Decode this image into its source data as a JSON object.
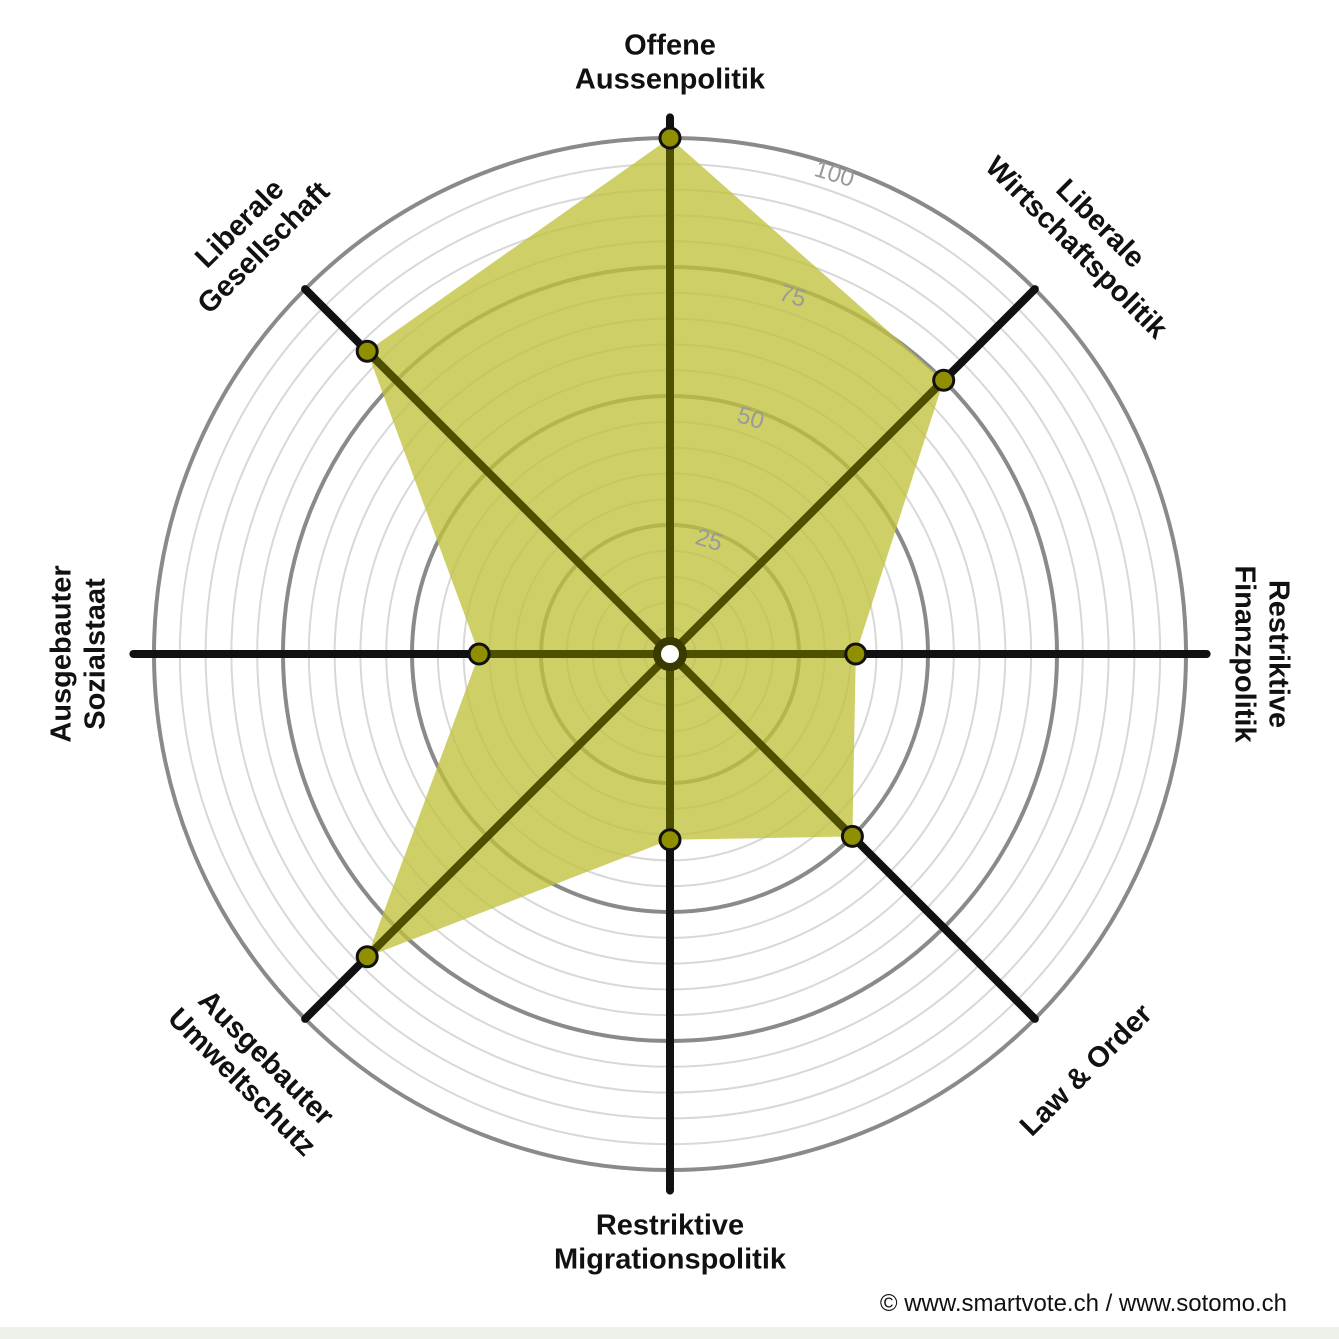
{
  "chart_data": {
    "type": "radar",
    "axes": [
      {
        "label_lines": [
          "Offene",
          "Aussenpolitik"
        ],
        "value": 100
      },
      {
        "label_lines": [
          "Liberale",
          "Wirtschaftspolitik"
        ],
        "value": 75
      },
      {
        "label_lines": [
          "Restriktive",
          "Finanzpolitik"
        ],
        "value": 36
      },
      {
        "label_lines": [
          "Law & Order"
        ],
        "value": 50
      },
      {
        "label_lines": [
          "Restriktive",
          "Migrationspolitik"
        ],
        "value": 36
      },
      {
        "label_lines": [
          "Ausgebauter",
          "Umweltschutz"
        ],
        "value": 83
      },
      {
        "label_lines": [
          "Ausgebauter",
          "Sozialstaat"
        ],
        "value": 37
      },
      {
        "label_lines": [
          "Liberale",
          "Gesellschaft"
        ],
        "value": 83
      }
    ],
    "range": [
      0,
      100
    ],
    "ticks": [
      "25",
      "50",
      "75",
      "100"
    ],
    "tick_values": [
      25,
      50,
      75,
      100
    ],
    "minor_step": 5,
    "colors": {
      "fill": "#c2c23e",
      "spoke": "#111111",
      "marker": "#8f8f00",
      "major_ring": "#8a8a8a",
      "minor_ring": "#d8d8d8"
    }
  },
  "footer": {
    "copyright": "© www.smartvote.ch / www.sotomo.ch"
  }
}
